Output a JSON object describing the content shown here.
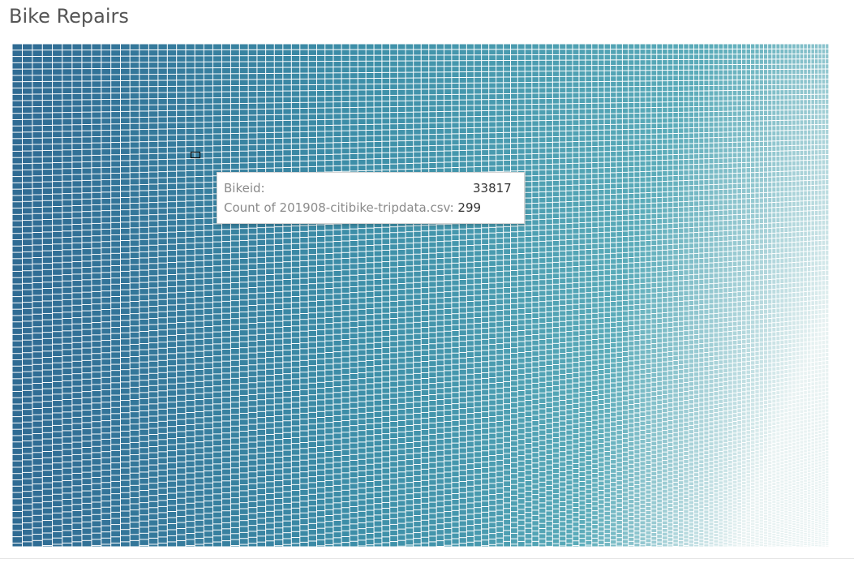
{
  "title": "Bike Repairs",
  "chart_data": {
    "type": "treemap",
    "title": "Bike Repairs",
    "dimension": "Bikeid",
    "measure": "Count of 201908-citibike-tripdata.csv",
    "color_range": [
      "#2f6a93",
      "#3d8fa8",
      "#5aabb9",
      "#e8f2f2"
    ],
    "highlighted": {
      "bikeid": "33817",
      "count": "299"
    }
  },
  "tooltip": {
    "label_1": "Bikeid:",
    "value_1": "33817",
    "label_2": "Count of 201908-citibike-tripdata.csv:",
    "value_2": "299"
  }
}
